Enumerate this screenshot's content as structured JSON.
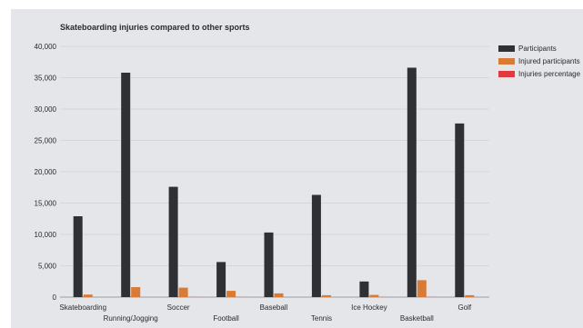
{
  "chart_data": {
    "type": "bar",
    "title": "Skateboarding injuries compared to other sports",
    "xlabel": "",
    "ylabel": "",
    "categories": [
      "Skateboarding",
      "Running/Jogging",
      "Soccer",
      "Football",
      "Baseball",
      "Tennis",
      "Ice Hockey",
      "Basketball",
      "Golf"
    ],
    "series": [
      {
        "name": "Participants",
        "color": "#2e3033",
        "values": [
          12900,
          35800,
          17600,
          5600,
          10300,
          16300,
          2500,
          36600,
          27700
        ]
      },
      {
        "name": "Injured participants",
        "color": "#d97a35",
        "values": [
          400,
          1600,
          1500,
          1000,
          600,
          300,
          350,
          2700,
          300
        ]
      },
      {
        "name": "Injuries percentage",
        "color": "#e03a3a",
        "values": [
          3.1,
          4.5,
          8.5,
          17.9,
          5.8,
          1.8,
          14,
          7.4,
          1.1
        ]
      }
    ],
    "yticks": [
      "0",
      "5,000",
      "10,000",
      "15,000",
      "20,000",
      "25,000",
      "30,000",
      "35,000",
      "40,000"
    ],
    "ylim": [
      0,
      40000
    ],
    "grid": true,
    "legend": "right"
  }
}
